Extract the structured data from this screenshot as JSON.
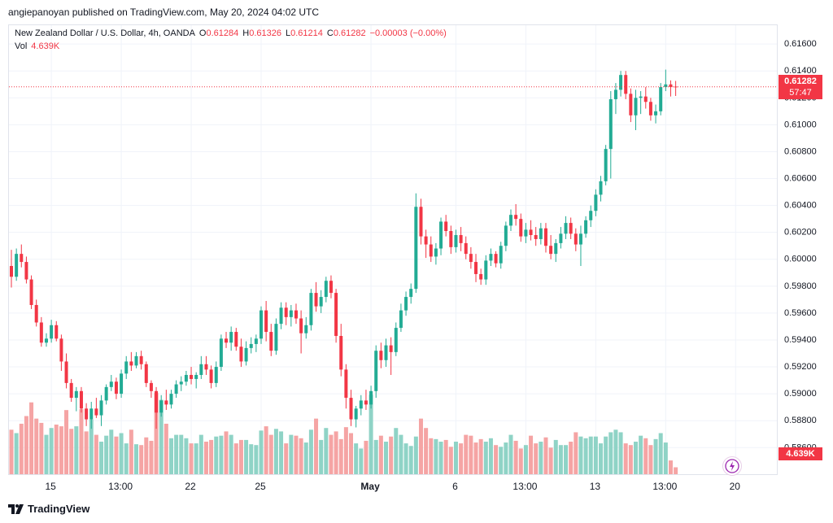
{
  "header": {
    "attribution": "angiepanoyan published on TradingView.com, May 20, 2024 04:02 UTC"
  },
  "legend": {
    "symbol": "New Zealand Dollar / U.S. Dollar, 4h, OANDA",
    "o_label": "O",
    "o_value": "0.61284",
    "h_label": "H",
    "h_value": "0.61326",
    "l_label": "L",
    "l_value": "0.61214",
    "c_label": "C",
    "c_value": "0.61282",
    "change": "−0.00003 (−0.00%)",
    "vol_label": "Vol",
    "vol_value": "4.639K"
  },
  "price_tag": {
    "price": "0.61282",
    "countdown": "57:47"
  },
  "vol_tag": "4.639K",
  "footer": {
    "brand": "TradingView"
  },
  "colors": {
    "up": "#22ab94",
    "down": "#f23645",
    "vol_up": "#8fd3c6",
    "vol_down": "#f5a4a4",
    "grid": "#f0f3fa"
  },
  "chart_data": {
    "type": "candlestick",
    "ylim": [
      0.5839,
      0.6174
    ],
    "y_ticks": [
      "0.61600",
      "0.61400",
      "0.61200",
      "0.61000",
      "0.60800",
      "0.60600",
      "0.60400",
      "0.60200",
      "0.60000",
      "0.59800",
      "0.59600",
      "0.59400",
      "0.59200",
      "0.59000",
      "0.58800",
      "0.58600"
    ],
    "x_ticks": [
      {
        "label": "15",
        "index": 8
      },
      {
        "label": "13:00",
        "index": 22
      },
      {
        "label": "22",
        "index": 36
      },
      {
        "label": "25",
        "index": 50
      },
      {
        "label": "May",
        "index": 72
      },
      {
        "label": "6",
        "index": 89
      },
      {
        "label": "13:00",
        "index": 103
      },
      {
        "label": "13",
        "index": 117
      },
      {
        "label": "13:00",
        "index": 131
      },
      {
        "label": "20",
        "index": 145
      }
    ],
    "last_price": 0.61282,
    "candles": [
      [
        0.5995,
        0.6007,
        0.5979,
        0.5987,
        54
      ],
      [
        0.5987,
        0.6008,
        0.5984,
        0.6004,
        50
      ],
      [
        0.6004,
        0.6011,
        0.5994,
        0.5998,
        61
      ],
      [
        0.5998,
        0.6002,
        0.5982,
        0.5985,
        70
      ],
      [
        0.5985,
        0.5988,
        0.5963,
        0.5966,
        86
      ],
      [
        0.5966,
        0.597,
        0.595,
        0.5953,
        67
      ],
      [
        0.5953,
        0.5957,
        0.5935,
        0.5938,
        62
      ],
      [
        0.5938,
        0.5945,
        0.5935,
        0.5941,
        48
      ],
      [
        0.5941,
        0.5955,
        0.5938,
        0.5951,
        56
      ],
      [
        0.5951,
        0.5954,
        0.5939,
        0.5941,
        60
      ],
      [
        0.5941,
        0.5944,
        0.5917,
        0.5924,
        58
      ],
      [
        0.5924,
        0.593,
        0.5904,
        0.5908,
        77
      ],
      [
        0.5908,
        0.5911,
        0.5894,
        0.5897,
        55
      ],
      [
        0.5897,
        0.5905,
        0.5887,
        0.5902,
        58
      ],
      [
        0.5902,
        0.5905,
        0.5886,
        0.5889,
        78
      ],
      [
        0.5889,
        0.5893,
        0.5876,
        0.5881,
        52
      ],
      [
        0.5881,
        0.5894,
        0.5874,
        0.5889,
        66
      ],
      [
        0.5889,
        0.5897,
        0.5882,
        0.5884,
        48
      ],
      [
        0.5884,
        0.5899,
        0.5876,
        0.5895,
        40
      ],
      [
        0.5895,
        0.5907,
        0.5892,
        0.5905,
        47
      ],
      [
        0.5905,
        0.5914,
        0.5902,
        0.5909,
        54
      ],
      [
        0.5909,
        0.5912,
        0.5896,
        0.59,
        46
      ],
      [
        0.59,
        0.5918,
        0.5897,
        0.5915,
        50
      ],
      [
        0.5915,
        0.5928,
        0.5911,
        0.5924,
        38
      ],
      [
        0.5924,
        0.5931,
        0.5917,
        0.5921,
        54
      ],
      [
        0.5921,
        0.5931,
        0.5919,
        0.5928,
        37
      ],
      [
        0.5928,
        0.5932,
        0.5918,
        0.5922,
        36
      ],
      [
        0.5922,
        0.5924,
        0.5905,
        0.5908,
        45
      ],
      [
        0.5908,
        0.591,
        0.5897,
        0.5902,
        41
      ],
      [
        0.5902,
        0.5905,
        0.5874,
        0.5886,
        97
      ],
      [
        0.5886,
        0.5899,
        0.5883,
        0.5895,
        89
      ],
      [
        0.5895,
        0.5903,
        0.5888,
        0.5892,
        61
      ],
      [
        0.5892,
        0.5903,
        0.5889,
        0.59,
        44
      ],
      [
        0.59,
        0.591,
        0.5897,
        0.5907,
        48
      ],
      [
        0.5907,
        0.5913,
        0.5902,
        0.5909,
        48
      ],
      [
        0.5909,
        0.5917,
        0.5906,
        0.5914,
        44
      ],
      [
        0.5914,
        0.592,
        0.5907,
        0.5911,
        38
      ],
      [
        0.5911,
        0.5916,
        0.5904,
        0.5914,
        38
      ],
      [
        0.5914,
        0.5928,
        0.5911,
        0.5922,
        48
      ],
      [
        0.5922,
        0.5928,
        0.5914,
        0.5918,
        40
      ],
      [
        0.5918,
        0.5921,
        0.5904,
        0.5908,
        42
      ],
      [
        0.5908,
        0.5924,
        0.5905,
        0.592,
        46
      ],
      [
        0.592,
        0.5944,
        0.5917,
        0.5941,
        47
      ],
      [
        0.5941,
        0.5946,
        0.5934,
        0.5938,
        52
      ],
      [
        0.5938,
        0.595,
        0.5932,
        0.5946,
        48
      ],
      [
        0.5946,
        0.5949,
        0.5932,
        0.5935,
        38
      ],
      [
        0.5935,
        0.5941,
        0.592,
        0.5924,
        42
      ],
      [
        0.5924,
        0.5939,
        0.5921,
        0.5934,
        42
      ],
      [
        0.5934,
        0.5942,
        0.593,
        0.5937,
        37
      ],
      [
        0.5937,
        0.5944,
        0.5931,
        0.5941,
        36
      ],
      [
        0.5941,
        0.5965,
        0.5937,
        0.5962,
        53
      ],
      [
        0.5962,
        0.5969,
        0.5939,
        0.5946,
        58
      ],
      [
        0.5946,
        0.5952,
        0.5928,
        0.5932,
        48
      ],
      [
        0.5932,
        0.5956,
        0.5929,
        0.5952,
        55
      ],
      [
        0.5952,
        0.5968,
        0.5948,
        0.5964,
        52
      ],
      [
        0.5964,
        0.5968,
        0.5951,
        0.5957,
        38
      ],
      [
        0.5957,
        0.5966,
        0.595,
        0.5962,
        48
      ],
      [
        0.5962,
        0.5967,
        0.5952,
        0.5956,
        47
      ],
      [
        0.5956,
        0.5962,
        0.593,
        0.5945,
        44
      ],
      [
        0.5945,
        0.5957,
        0.5941,
        0.5951,
        39
      ],
      [
        0.5951,
        0.5978,
        0.5947,
        0.5975,
        54
      ],
      [
        0.5975,
        0.5983,
        0.5961,
        0.5965,
        67
      ],
      [
        0.5965,
        0.5977,
        0.596,
        0.5972,
        42
      ],
      [
        0.5972,
        0.5987,
        0.5968,
        0.5984,
        56
      ],
      [
        0.5984,
        0.5988,
        0.5971,
        0.5975,
        48
      ],
      [
        0.5975,
        0.5978,
        0.5938,
        0.5943,
        52
      ],
      [
        0.5943,
        0.5952,
        0.5913,
        0.5918,
        43
      ],
      [
        0.5918,
        0.5922,
        0.5889,
        0.5897,
        57
      ],
      [
        0.5897,
        0.5903,
        0.5876,
        0.5881,
        50
      ],
      [
        0.5881,
        0.5891,
        0.5875,
        0.5889,
        38
      ],
      [
        0.5889,
        0.5899,
        0.5884,
        0.5895,
        32
      ],
      [
        0.5895,
        0.5903,
        0.5888,
        0.5892,
        41
      ],
      [
        0.5892,
        0.5906,
        0.5889,
        0.5902,
        95
      ],
      [
        0.5902,
        0.5936,
        0.5897,
        0.5932,
        42
      ],
      [
        0.5932,
        0.5938,
        0.5919,
        0.5925,
        47
      ],
      [
        0.5925,
        0.5941,
        0.592,
        0.5936,
        40
      ],
      [
        0.5936,
        0.5942,
        0.5914,
        0.5931,
        46
      ],
      [
        0.5931,
        0.5953,
        0.5928,
        0.5949,
        56
      ],
      [
        0.5949,
        0.5967,
        0.5946,
        0.5962,
        48
      ],
      [
        0.5962,
        0.5976,
        0.5958,
        0.5972,
        38
      ],
      [
        0.5972,
        0.5982,
        0.5967,
        0.5978,
        35
      ],
      [
        0.5978,
        0.6049,
        0.5975,
        0.6039,
        46
      ],
      [
        0.6039,
        0.6045,
        0.6011,
        0.6017,
        67
      ],
      [
        0.6017,
        0.6022,
        0.6001,
        0.6011,
        56
      ],
      [
        0.6011,
        0.6017,
        0.5998,
        0.6002,
        44
      ],
      [
        0.6002,
        0.6012,
        0.5996,
        0.6008,
        43
      ],
      [
        0.6008,
        0.6031,
        0.6003,
        0.6028,
        40
      ],
      [
        0.6028,
        0.6033,
        0.6017,
        0.6021,
        42
      ],
      [
        0.6021,
        0.6025,
        0.6004,
        0.6009,
        34
      ],
      [
        0.6009,
        0.6022,
        0.6005,
        0.6018,
        40
      ],
      [
        0.6018,
        0.6024,
        0.6006,
        0.6012,
        38
      ],
      [
        0.6012,
        0.6017,
        0.6,
        0.6004,
        48
      ],
      [
        0.6004,
        0.6009,
        0.5993,
        0.5998,
        47
      ],
      [
        0.5998,
        0.6004,
        0.5983,
        0.5989,
        39
      ],
      [
        0.5989,
        0.5993,
        0.5981,
        0.5985,
        43
      ],
      [
        0.5985,
        0.6003,
        0.5981,
        0.5999,
        40
      ],
      [
        0.5999,
        0.6008,
        0.5995,
        0.6004,
        44
      ],
      [
        0.6004,
        0.6006,
        0.5994,
        0.5997,
        36
      ],
      [
        0.5997,
        0.6013,
        0.5993,
        0.601,
        34
      ],
      [
        0.601,
        0.6028,
        0.6006,
        0.6025,
        39
      ],
      [
        0.6025,
        0.6037,
        0.6021,
        0.6033,
        48
      ],
      [
        0.6033,
        0.6041,
        0.6025,
        0.603,
        41
      ],
      [
        0.603,
        0.6034,
        0.6013,
        0.6017,
        32
      ],
      [
        0.6017,
        0.6027,
        0.6012,
        0.6022,
        36
      ],
      [
        0.6022,
        0.6029,
        0.6014,
        0.6018,
        47
      ],
      [
        0.6018,
        0.6024,
        0.601,
        0.6015,
        38
      ],
      [
        0.6015,
        0.6027,
        0.6011,
        0.6023,
        40
      ],
      [
        0.6023,
        0.6027,
        0.6005,
        0.601,
        45
      ],
      [
        0.601,
        0.6018,
        0.6,
        0.6004,
        33
      ],
      [
        0.6004,
        0.6015,
        0.5998,
        0.6012,
        42
      ],
      [
        0.6012,
        0.6024,
        0.6008,
        0.6019,
        36
      ],
      [
        0.6019,
        0.6032,
        0.6015,
        0.6027,
        36
      ],
      [
        0.6027,
        0.6031,
        0.6015,
        0.6019,
        40
      ],
      [
        0.6019,
        0.6023,
        0.6006,
        0.6011,
        51
      ],
      [
        0.6011,
        0.6025,
        0.5995,
        0.6019,
        46
      ],
      [
        0.6019,
        0.6032,
        0.6016,
        0.6029,
        44
      ],
      [
        0.6029,
        0.604,
        0.6024,
        0.6036,
        46
      ],
      [
        0.6036,
        0.6052,
        0.6032,
        0.6048,
        46
      ],
      [
        0.6048,
        0.6062,
        0.6043,
        0.6058,
        38
      ],
      [
        0.6058,
        0.6085,
        0.6055,
        0.6082,
        46
      ],
      [
        0.6082,
        0.6125,
        0.606,
        0.6119,
        51
      ],
      [
        0.6119,
        0.6131,
        0.6108,
        0.6126,
        54
      ],
      [
        0.6126,
        0.614,
        0.6121,
        0.6137,
        51
      ],
      [
        0.6137,
        0.614,
        0.6119,
        0.6123,
        38
      ],
      [
        0.6123,
        0.6127,
        0.6102,
        0.6107,
        36
      ],
      [
        0.6107,
        0.6126,
        0.6096,
        0.612,
        40
      ],
      [
        0.612,
        0.6125,
        0.6108,
        0.6121,
        47
      ],
      [
        0.6121,
        0.6128,
        0.6112,
        0.6117,
        44
      ],
      [
        0.6117,
        0.612,
        0.6103,
        0.6107,
        36
      ],
      [
        0.6107,
        0.6115,
        0.6101,
        0.611,
        43
      ],
      [
        0.611,
        0.6131,
        0.6107,
        0.6128,
        50
      ],
      [
        0.6128,
        0.6141,
        0.6125,
        0.613,
        39
      ],
      [
        0.613,
        0.6133,
        0.6121,
        0.6128,
        18
      ],
      [
        0.61284,
        0.61326,
        0.61214,
        0.61282,
        10
      ]
    ]
  }
}
